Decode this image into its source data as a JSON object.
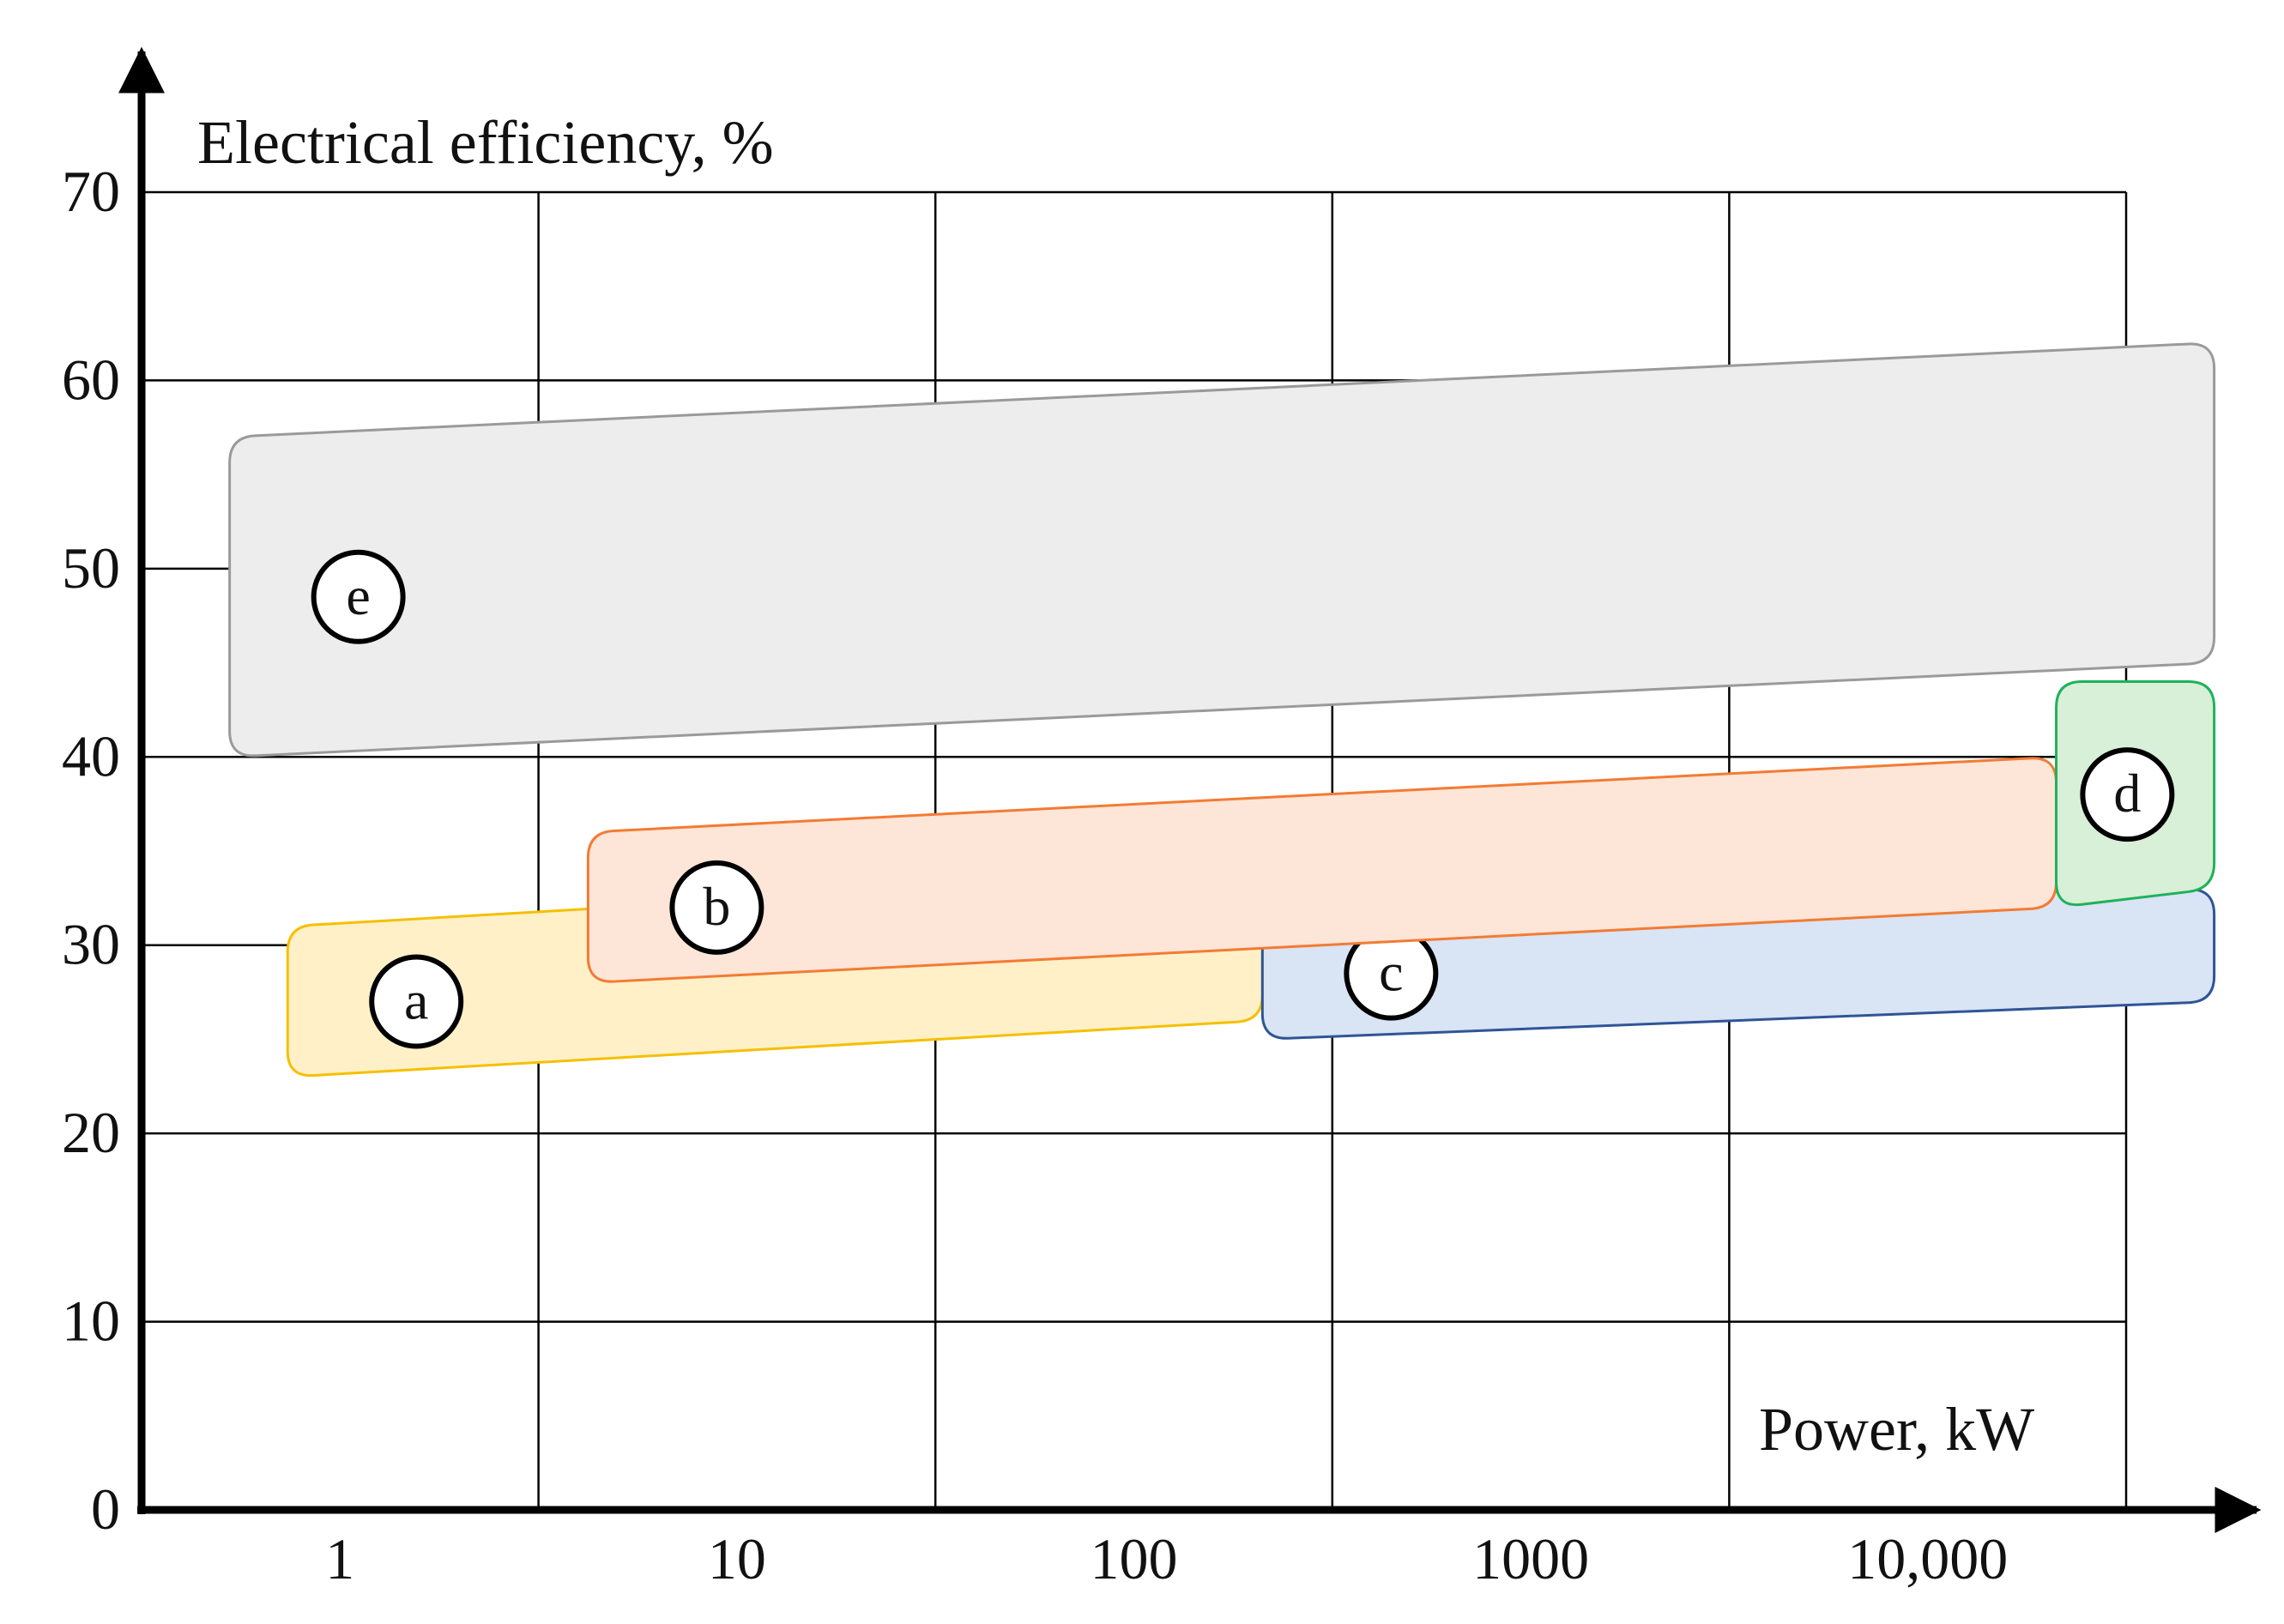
{
  "chart_data": {
    "type": "range-regions",
    "ylabel": "Electrical efficiency, %",
    "xlabel": "Power, kW",
    "ylim": [
      0,
      70
    ],
    "y_ticks": [
      "0",
      "10",
      "20",
      "30",
      "40",
      "50",
      "60",
      "70"
    ],
    "x_ticks": [
      "1",
      "10",
      "100",
      "1000",
      "10,000"
    ],
    "x_scale": "log",
    "grid": true,
    "regions": [
      {
        "label": "e",
        "color": "#ededed",
        "stroke": "#9a9a9a",
        "x_range": [
          0.5,
          50000
        ],
        "efficiency_at_low_power": [
          40,
          57
        ],
        "efficiency_at_high_power": [
          45,
          62
        ]
      },
      {
        "label": "a",
        "color": "#fff0c8",
        "stroke": "#f5c000",
        "x_range": [
          0.7,
          200
        ],
        "efficiency_at_low_power": [
          23,
          31
        ],
        "efficiency_at_high_power": [
          26,
          34
        ]
      },
      {
        "label": "c",
        "color": "#d9e4f4",
        "stroke": "#2f5597",
        "x_range": [
          200,
          50000
        ],
        "efficiency_at_low_power": [
          25,
          32
        ],
        "efficiency_at_high_power": [
          27,
          33
        ]
      },
      {
        "label": "b",
        "color": "#fde5d8",
        "stroke": "#f37b33",
        "x_range": [
          4,
          20000
        ],
        "efficiency_at_low_power": [
          28,
          36
        ],
        "efficiency_at_high_power": [
          32,
          40
        ]
      },
      {
        "label": "d",
        "color": "#d8efd8",
        "stroke": "#1fb25a",
        "x_range": [
          20000,
          50000
        ],
        "efficiency_at_low_power": [
          32,
          44
        ],
        "efficiency_at_high_power": [
          33,
          44
        ]
      }
    ]
  }
}
